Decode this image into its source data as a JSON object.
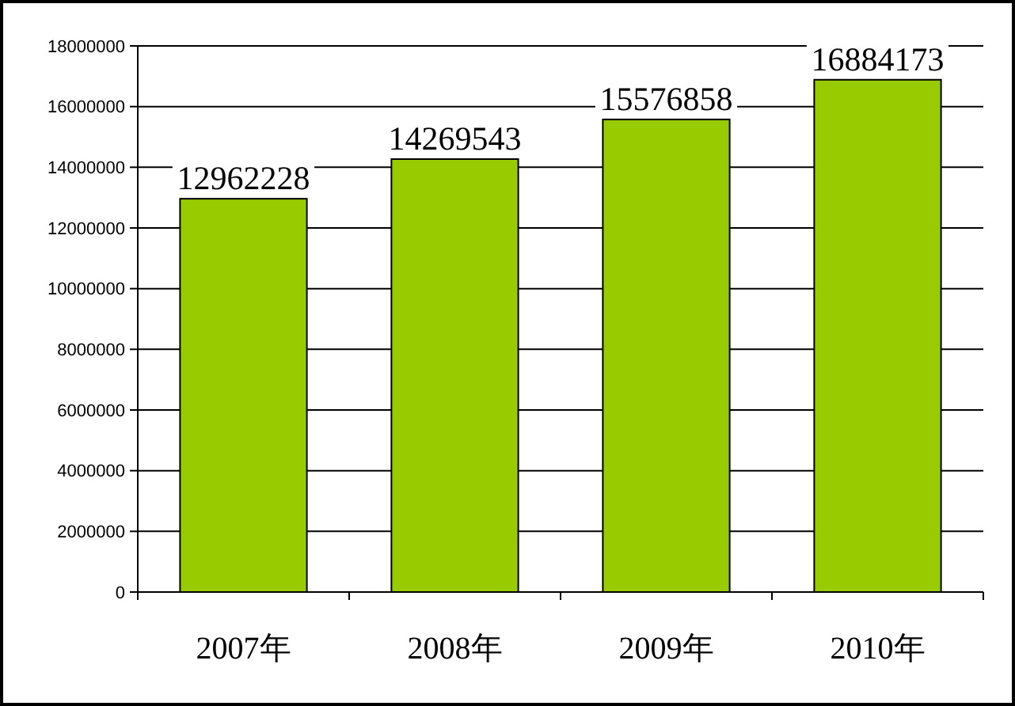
{
  "chart_data": {
    "type": "bar",
    "categories": [
      "2007年",
      "2008年",
      "2009年",
      "2010年"
    ],
    "values": [
      12962228,
      14269543,
      15576858,
      16884173
    ],
    "color": "#99cc00",
    "ylim": [
      0,
      18000000
    ],
    "yticks": [
      0,
      2000000,
      4000000,
      6000000,
      8000000,
      10000000,
      12000000,
      14000000,
      16000000,
      18000000
    ],
    "grid": "y",
    "data_labels": true
  }
}
